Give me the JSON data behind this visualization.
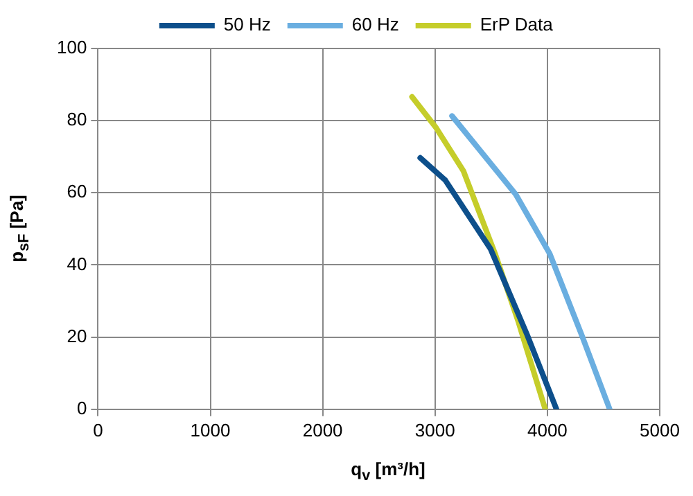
{
  "chart_data": {
    "type": "line",
    "xlabel": "q$_{v}$ [m³/h]",
    "ylabel": "p$_{sF}$ [Pa]",
    "series": [
      {
        "name": "50 Hz",
        "color": "#0d4f8b",
        "x": [
          2868,
          3091,
          3495,
          3819,
          4081
        ],
        "values": [
          69.7,
          63.5,
          44.4,
          20.7,
          0
        ]
      },
      {
        "name": "60 Hz",
        "color": "#6aaee0",
        "x": [
          3151,
          3718,
          4021,
          4304,
          4555
        ],
        "values": [
          81.3,
          59.6,
          43.1,
          20.7,
          0
        ]
      },
      {
        "name": "ErP Data",
        "color": "#c5cd2a",
        "x": [
          2795,
          3010,
          3252,
          3535,
          3738,
          3981
        ],
        "values": [
          86.6,
          78,
          66.1,
          43.1,
          24.6,
          0
        ]
      }
    ],
    "xlim": [
      0,
      5000
    ],
    "xticks": [
      0,
      1000,
      2000,
      3000,
      4000,
      5000
    ],
    "ylim": [
      0,
      100
    ],
    "yticks": [
      0,
      20,
      40,
      60,
      80,
      100
    ],
    "grid": true,
    "legend": "top",
    "marker": "none",
    "line_style": "solid"
  }
}
